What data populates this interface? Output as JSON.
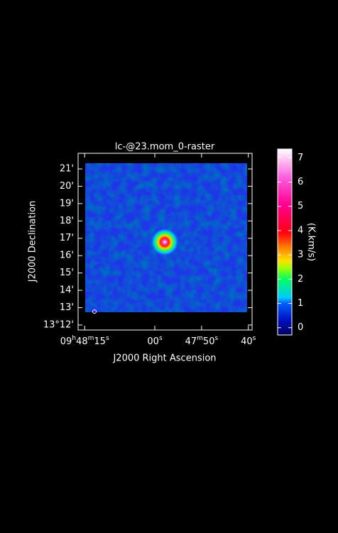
{
  "chart_data": {
    "type": "raster",
    "title": "lc-@23.mom_0-raster",
    "xlabel": "J2000 Right Ascension",
    "ylabel": "J2000 Declination",
    "xlim": [
      35296.4,
      35259.2
    ],
    "xticks": [
      {
        "value": 35295,
        "label": "09h48m15s"
      },
      {
        "value": 35280,
        "label": "00s"
      },
      {
        "value": 35270,
        "label": "47m50s"
      },
      {
        "value": 35260,
        "label": "40s"
      }
    ],
    "ylim": [
      11.71,
      21.9
    ],
    "yticks": [
      {
        "value": 12,
        "label": "13°12'"
      },
      {
        "value": 13,
        "label": "13'"
      },
      {
        "value": 14,
        "label": "14'"
      },
      {
        "value": 15,
        "label": "15'"
      },
      {
        "value": 16,
        "label": "16'"
      },
      {
        "value": 17,
        "label": "17'"
      },
      {
        "value": 18,
        "label": "18'"
      },
      {
        "value": 19,
        "label": "19'"
      },
      {
        "value": 20,
        "label": "20'"
      },
      {
        "value": 21,
        "label": "21'"
      }
    ],
    "colorbar": {
      "label": "(K.km/s)",
      "lim": [
        -0.3,
        7.36
      ],
      "ticks": [
        0,
        1,
        2,
        3,
        4,
        5,
        6,
        7
      ]
    }
  }
}
